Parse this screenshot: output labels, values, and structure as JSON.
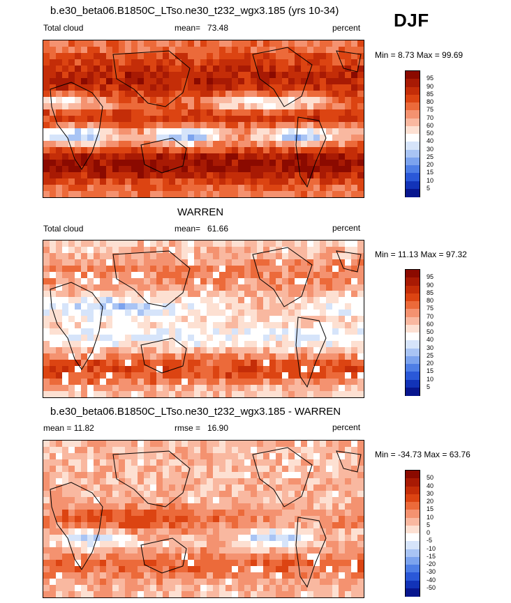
{
  "season": "DJF",
  "chart_data": [
    {
      "type": "heatmap",
      "title": "b.e30_beta06.B1850C_LTso.ne30_t232_wgx3.185 (yrs 10-34)",
      "variable": "Total cloud",
      "stat_label": "mean=",
      "stat_value": "73.48",
      "units": "percent",
      "minmax_label": "Min =   8.73 Max =  99.69",
      "min": 8.73,
      "max": 99.69,
      "mean": 73.48,
      "levels": [
        "95",
        "90",
        "85",
        "80",
        "75",
        "70",
        "60",
        "50",
        "40",
        "30",
        "25",
        "20",
        "15",
        "10",
        "5"
      ],
      "colors": [
        "#8b0a00",
        "#a81a04",
        "#c42d08",
        "#dc4412",
        "#ec6a3a",
        "#f49270",
        "#f9b8a0",
        "#fde0d2",
        "#ffffff",
        "#d6e4fa",
        "#a9c4f4",
        "#7ca3ee",
        "#4e7ee6",
        "#2a58d8",
        "#1233b8",
        "#08168e"
      ]
    },
    {
      "type": "heatmap",
      "title": "WARREN",
      "variable": "Total cloud",
      "stat_label": "mean=",
      "stat_value": "61.66",
      "units": "percent",
      "minmax_label": "Min =  11.13 Max =  97.32",
      "min": 11.13,
      "max": 97.32,
      "mean": 61.66,
      "levels": [
        "95",
        "90",
        "85",
        "80",
        "75",
        "70",
        "60",
        "50",
        "40",
        "30",
        "25",
        "20",
        "15",
        "10",
        "5"
      ],
      "colors": [
        "#8b0a00",
        "#a81a04",
        "#c42d08",
        "#dc4412",
        "#ec6a3a",
        "#f49270",
        "#f9b8a0",
        "#fde0d2",
        "#ffffff",
        "#d6e4fa",
        "#a9c4f4",
        "#7ca3ee",
        "#4e7ee6",
        "#2a58d8",
        "#1233b8",
        "#08168e"
      ]
    },
    {
      "type": "heatmap",
      "title": "b.e30_beta06.B1850C_LTso.ne30_t232_wgx3.185 - WARREN",
      "variable": "mean =  11.82",
      "stat_label": "rmse =",
      "stat_value": "16.90",
      "units": "percent",
      "minmax_label": "Min = -34.73 Max =  63.76",
      "min": -34.73,
      "max": 63.76,
      "mean": 11.82,
      "rmse": 16.9,
      "levels": [
        "50",
        "40",
        "30",
        "20",
        "15",
        "10",
        "5",
        "0",
        "-5",
        "-10",
        "-15",
        "-20",
        "-30",
        "-40",
        "-50"
      ],
      "colors": [
        "#8b0a00",
        "#a81a04",
        "#c42d08",
        "#dc4412",
        "#ec6a3a",
        "#f49270",
        "#f9b8a0",
        "#fde0d2",
        "#ffffff",
        "#d6e4fa",
        "#a9c4f4",
        "#7ca3ee",
        "#4e7ee6",
        "#2a58d8",
        "#1233b8",
        "#08168e"
      ]
    }
  ]
}
